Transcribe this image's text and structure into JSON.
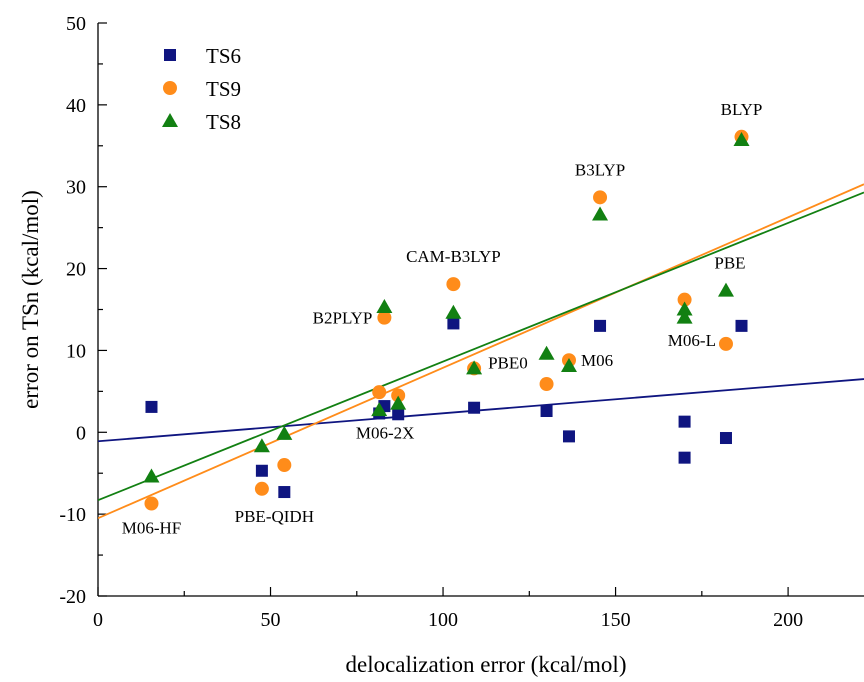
{
  "chart_data": {
    "type": "scatter",
    "xlabel": "delocalization error (kcal/mol)",
    "ylabel": "error on TSn (kcal/mol)",
    "xlim": [
      0,
      222
    ],
    "ylim": [
      -20,
      50
    ],
    "xticks": [
      0,
      50,
      100,
      150,
      200
    ],
    "yticks": [
      -20,
      -10,
      0,
      10,
      20,
      30,
      40,
      50
    ],
    "legend_position": "top-left",
    "grid": false,
    "series": [
      {
        "name": "TS6",
        "marker": "square",
        "color": "#0f1580",
        "points": [
          [
            15.5,
            3.1
          ],
          [
            47.5,
            -4.7
          ],
          [
            54,
            -7.3
          ],
          [
            81.5,
            2.3
          ],
          [
            83,
            3.2
          ],
          [
            87,
            2.2
          ],
          [
            103,
            13.3
          ],
          [
            109,
            3.0
          ],
          [
            130,
            2.6
          ],
          [
            136.5,
            -0.5
          ],
          [
            145.5,
            13.0
          ],
          [
            170,
            1.3
          ],
          [
            170,
            -3.1
          ],
          [
            182,
            -0.7
          ],
          [
            186.5,
            13.0
          ]
        ]
      },
      {
        "name": "TS9",
        "marker": "circle",
        "color": "#ff8c1a",
        "points": [
          [
            15.5,
            -8.7
          ],
          [
            47.5,
            -6.9
          ],
          [
            54,
            -4.0
          ],
          [
            81.5,
            4.9
          ],
          [
            83,
            14.0
          ],
          [
            87,
            4.5
          ],
          [
            103,
            18.1
          ],
          [
            109,
            7.8
          ],
          [
            130,
            5.9
          ],
          [
            136.5,
            8.8
          ],
          [
            145.5,
            28.7
          ],
          [
            170,
            16.2
          ],
          [
            182,
            10.8
          ],
          [
            186.5,
            36.1
          ]
        ]
      },
      {
        "name": "TS8",
        "marker": "triangle",
        "color": "#128012",
        "points": [
          [
            15.5,
            -5.4
          ],
          [
            47.5,
            -1.7
          ],
          [
            54,
            -0.2
          ],
          [
            81.5,
            2.7
          ],
          [
            83,
            15.3
          ],
          [
            87,
            3.5
          ],
          [
            103,
            14.6
          ],
          [
            109,
            7.8
          ],
          [
            130,
            9.6
          ],
          [
            136.5,
            8.1
          ],
          [
            145.5,
            26.6
          ],
          [
            170,
            15.0
          ],
          [
            170,
            14.0
          ],
          [
            182,
            17.3
          ],
          [
            186.5,
            35.7
          ]
        ]
      }
    ],
    "fit_lines": [
      {
        "series": "TS6",
        "x": [
          0,
          222
        ],
        "y": [
          -1.1,
          6.5
        ]
      },
      {
        "series": "TS9",
        "x": [
          0,
          222
        ],
        "y": [
          -10.5,
          30.3
        ]
      },
      {
        "series": "TS8",
        "x": [
          0,
          222
        ],
        "y": [
          -8.3,
          29.3
        ]
      }
    ],
    "annotations": [
      {
        "text": "BLYP",
        "x": 186.5,
        "y": 36.1,
        "anchor": "middle",
        "dx": 0,
        "dy": -22
      },
      {
        "text": "B3LYP",
        "x": 145.5,
        "y": 28.7,
        "anchor": "middle",
        "dx": 0,
        "dy": -22
      },
      {
        "text": "CAM-B3LYP",
        "x": 103,
        "y": 18.1,
        "anchor": "middle",
        "dx": 0,
        "dy": -22
      },
      {
        "text": "PBE",
        "x": 182,
        "y": 17.3,
        "anchor": "middle",
        "dx": 4,
        "dy": -22
      },
      {
        "text": "B2PLYP",
        "x": 83,
        "y": 14.0,
        "anchor": "end",
        "dx": -12,
        "dy": 6
      },
      {
        "text": "M06-L",
        "x": 182,
        "y": 10.8,
        "anchor": "end",
        "dx": -10,
        "dy": 2
      },
      {
        "text": "PBE0",
        "x": 109,
        "y": 7.8,
        "anchor": "start",
        "dx": 14,
        "dy": 0
      },
      {
        "text": "M06",
        "x": 136.5,
        "y": 8.1,
        "anchor": "start",
        "dx": 12,
        "dy": 0
      },
      {
        "text": "M06-2X",
        "x": 87,
        "y": 2.2,
        "anchor": "middle",
        "dx": -13,
        "dy": 24
      },
      {
        "text": "M06-HF",
        "x": 15.5,
        "y": -8.7,
        "anchor": "middle",
        "dx": 0,
        "dy": 30
      },
      {
        "text": "PBE-QIDH",
        "x": 54,
        "y": -7.3,
        "anchor": "middle",
        "dx": -10,
        "dy": 30
      }
    ]
  }
}
